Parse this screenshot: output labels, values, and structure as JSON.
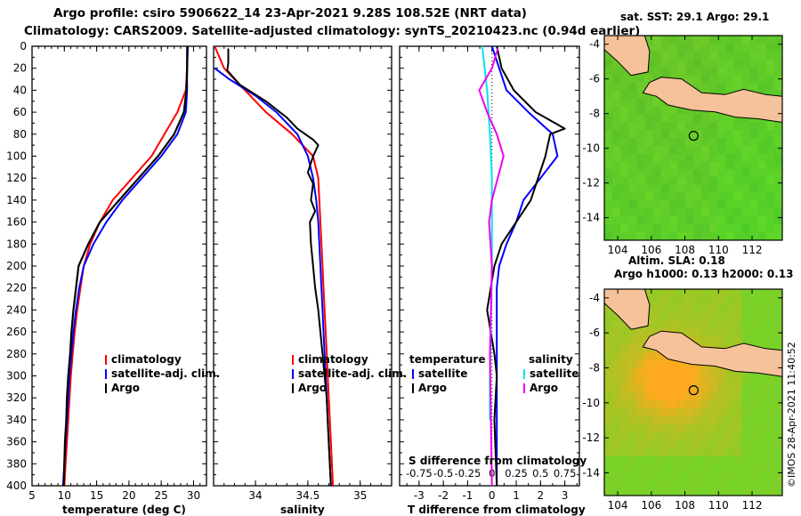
{
  "header": {
    "line1": "Argo profile: csiro 5906622_14 23-Apr-2021 9.28S 108.52E (NRT data)",
    "line2": "Climatology: CARS2009. Satellite-adjusted climatology: synTS_20210423.nc (0.94d earlier)"
  },
  "colors": {
    "climatology": "#ff0000",
    "satellite": "#0000ff",
    "argo": "#000000",
    "salinity_sat": "#00e5ee",
    "salinity_argo": "#ee00ee",
    "land": "#f5c29a"
  },
  "chart_data": [
    {
      "type": "line",
      "xlabel": "temperature (deg C)",
      "ylabel": "",
      "xlim": [
        5,
        32
      ],
      "ylim": [
        400,
        0
      ],
      "x_ticks": [
        "5",
        "10",
        "15",
        "20",
        "25",
        "30"
      ],
      "y_ticks": [
        "0",
        "20",
        "40",
        "60",
        "80",
        "100",
        "120",
        "140",
        "160",
        "180",
        "200",
        "220",
        "240",
        "260",
        "280",
        "300",
        "320",
        "340",
        "360",
        "380",
        "400"
      ],
      "legend": [
        "climatology",
        "satellite-adj. clim.",
        "Argo"
      ],
      "series": [
        {
          "name": "climatology",
          "color": "#ff0000",
          "points": [
            [
              29.0,
              0
            ],
            [
              29.0,
              20
            ],
            [
              28.8,
              40
            ],
            [
              27.5,
              60
            ],
            [
              25.5,
              80
            ],
            [
              23.5,
              100
            ],
            [
              20.5,
              120
            ],
            [
              17.5,
              140
            ],
            [
              15.5,
              160
            ],
            [
              14.0,
              180
            ],
            [
              13.0,
              200
            ],
            [
              12.5,
              220
            ],
            [
              12.0,
              240
            ],
            [
              11.6,
              260
            ],
            [
              11.3,
              280
            ],
            [
              11.0,
              300
            ],
            [
              10.8,
              320
            ],
            [
              10.6,
              340
            ],
            [
              10.4,
              360
            ],
            [
              10.2,
              380
            ],
            [
              10.0,
              400
            ]
          ]
        },
        {
          "name": "satellite-adj. clim.",
          "color": "#0000ff",
          "points": [
            [
              29.0,
              0
            ],
            [
              29.0,
              20
            ],
            [
              29.0,
              40
            ],
            [
              28.8,
              60
            ],
            [
              27.5,
              80
            ],
            [
              25.0,
              100
            ],
            [
              22.0,
              120
            ],
            [
              19.0,
              140
            ],
            [
              16.5,
              160
            ],
            [
              14.5,
              180
            ],
            [
              13.0,
              200
            ],
            [
              12.3,
              220
            ],
            [
              11.8,
              240
            ],
            [
              11.4,
              260
            ],
            [
              11.1,
              280
            ],
            [
              10.8,
              300
            ],
            [
              10.6,
              320
            ],
            [
              10.4,
              340
            ],
            [
              10.2,
              360
            ],
            [
              10.0,
              380
            ],
            [
              9.8,
              400
            ]
          ]
        },
        {
          "name": "Argo",
          "color": "#000000",
          "points": [
            [
              29.1,
              0
            ],
            [
              29.0,
              20
            ],
            [
              28.9,
              40
            ],
            [
              28.5,
              60
            ],
            [
              27.0,
              80
            ],
            [
              24.5,
              100
            ],
            [
              21.5,
              120
            ],
            [
              18.5,
              140
            ],
            [
              15.5,
              160
            ],
            [
              13.7,
              180
            ],
            [
              12.2,
              200
            ],
            [
              11.8,
              220
            ],
            [
              11.4,
              240
            ],
            [
              11.1,
              260
            ],
            [
              10.9,
              280
            ],
            [
              10.6,
              300
            ],
            [
              10.4,
              320
            ],
            [
              10.3,
              340
            ],
            [
              10.1,
              360
            ],
            [
              10.0,
              380
            ],
            [
              9.9,
              400
            ]
          ]
        }
      ]
    },
    {
      "type": "line",
      "xlabel": "salinity",
      "xlim": [
        33.6,
        35.3
      ],
      "ylim": [
        400,
        0
      ],
      "x_ticks": [
        "34",
        "34.5",
        "35"
      ],
      "legend": [
        "climatology",
        "satellite-adj. clim.",
        "Argo"
      ],
      "series": [
        {
          "name": "climatology",
          "color": "#ff0000",
          "points": [
            [
              33.61,
              0
            ],
            [
              33.7,
              20
            ],
            [
              33.9,
              40
            ],
            [
              34.1,
              60
            ],
            [
              34.35,
              80
            ],
            [
              34.55,
              100
            ],
            [
              34.6,
              120
            ],
            [
              34.61,
              140
            ],
            [
              34.62,
              160
            ],
            [
              34.63,
              180
            ],
            [
              34.64,
              200
            ],
            [
              34.65,
              220
            ],
            [
              34.66,
              240
            ],
            [
              34.67,
              260
            ],
            [
              34.68,
              280
            ],
            [
              34.69,
              300
            ],
            [
              34.7,
              320
            ],
            [
              34.71,
              340
            ],
            [
              34.72,
              360
            ],
            [
              34.73,
              380
            ],
            [
              34.74,
              400
            ]
          ]
        },
        {
          "name": "satellite-adj. clim.",
          "color": "#0000ff",
          "points": [
            [
              33.61,
              20
            ],
            [
              33.75,
              30
            ],
            [
              34.0,
              45
            ],
            [
              34.2,
              60
            ],
            [
              34.4,
              80
            ],
            [
              34.5,
              100
            ],
            [
              34.55,
              120
            ],
            [
              34.58,
              140
            ],
            [
              34.6,
              160
            ],
            [
              34.61,
              180
            ],
            [
              34.62,
              200
            ],
            [
              34.63,
              220
            ],
            [
              34.64,
              240
            ],
            [
              34.65,
              260
            ],
            [
              34.66,
              280
            ],
            [
              34.67,
              300
            ],
            [
              34.68,
              320
            ],
            [
              34.69,
              340
            ],
            [
              34.7,
              360
            ],
            [
              34.71,
              380
            ],
            [
              34.72,
              400
            ]
          ]
        },
        {
          "name": "Argo",
          "color": "#000000",
          "points": [
            [
              33.74,
              2
            ],
            [
              33.74,
              15
            ],
            [
              33.73,
              22
            ],
            [
              33.85,
              35
            ],
            [
              34.1,
              50
            ],
            [
              34.3,
              65
            ],
            [
              34.4,
              75
            ],
            [
              34.55,
              85
            ],
            [
              34.6,
              90
            ],
            [
              34.55,
              100
            ],
            [
              34.5,
              115
            ],
            [
              34.55,
              125
            ],
            [
              34.53,
              140
            ],
            [
              34.57,
              150
            ],
            [
              34.52,
              160
            ],
            [
              34.53,
              180
            ],
            [
              34.55,
              200
            ],
            [
              34.57,
              220
            ],
            [
              34.6,
              240
            ],
            [
              34.62,
              260
            ],
            [
              34.64,
              280
            ],
            [
              34.66,
              300
            ],
            [
              34.68,
              320
            ],
            [
              34.69,
              340
            ],
            [
              34.7,
              360
            ],
            [
              34.71,
              380
            ],
            [
              34.72,
              400
            ]
          ]
        }
      ]
    },
    {
      "type": "line",
      "xlabel": "T difference from climatology",
      "xlim": [
        -3.8,
        3.6
      ],
      "ylim": [
        400,
        0
      ],
      "x_ticks": [
        "-3",
        "-2",
        "-1",
        "0",
        "1",
        "2",
        "3"
      ],
      "s_axis_title": "S difference from climatology",
      "s_ticks": [
        "-0.75",
        "-0.5",
        "-0.25",
        "0",
        "0.25",
        "0.5",
        "0.75"
      ],
      "s_range": [
        -0.75,
        0.75
      ],
      "legend_temperature": [
        "temperature",
        "satellite",
        "Argo"
      ],
      "legend_salinity": [
        "salinity",
        "satellite",
        "Argo"
      ],
      "series": [
        {
          "name": "temperature satellite",
          "color": "#0000ff",
          "points": [
            [
              0,
              0
            ],
            [
              0.3,
              20
            ],
            [
              0.6,
              40
            ],
            [
              1.5,
              60
            ],
            [
              2.5,
              80
            ],
            [
              2.7,
              100
            ],
            [
              2.0,
              120
            ],
            [
              1.3,
              140
            ],
            [
              1.0,
              160
            ],
            [
              0.6,
              180
            ],
            [
              0.3,
              200
            ],
            [
              0.2,
              220
            ],
            [
              0.2,
              260
            ],
            [
              0.2,
              300
            ],
            [
              0.2,
              360
            ],
            [
              0.2,
              400
            ]
          ]
        },
        {
          "name": "temperature Argo",
          "color": "#000000",
          "points": [
            [
              0.2,
              0
            ],
            [
              0.4,
              20
            ],
            [
              0.9,
              40
            ],
            [
              1.8,
              60
            ],
            [
              2.6,
              70
            ],
            [
              3.0,
              75
            ],
            [
              2.4,
              80
            ],
            [
              2.2,
              100
            ],
            [
              1.6,
              140
            ],
            [
              1.0,
              160
            ],
            [
              0.4,
              180
            ],
            [
              0.1,
              200
            ],
            [
              -0.2,
              240
            ],
            [
              0.1,
              280
            ],
            [
              0.2,
              300
            ],
            [
              0.1,
              340
            ],
            [
              0.2,
              400
            ]
          ]
        },
        {
          "name": "salinity satellite",
          "color": "#00e5ee",
          "points": [
            [
              -0.1,
              0
            ],
            [
              -0.05,
              40
            ],
            [
              -0.02,
              80
            ],
            [
              0.0,
              120
            ],
            [
              0.0,
              200
            ],
            [
              -0.01,
              250
            ],
            [
              -0.02,
              300
            ],
            [
              -0.02,
              340
            ]
          ]
        },
        {
          "name": "salinity Argo",
          "color": "#ee00ee",
          "points": [
            [
              0.06,
              2
            ],
            [
              0.0,
              20
            ],
            [
              -0.13,
              40
            ],
            [
              -0.05,
              60
            ],
            [
              0.05,
              80
            ],
            [
              0.12,
              100
            ],
            [
              0.0,
              140
            ],
            [
              -0.03,
              160
            ],
            [
              0.0,
              200
            ],
            [
              -0.02,
              280
            ],
            [
              0.0,
              400
            ]
          ]
        }
      ]
    },
    {
      "type": "heatmap",
      "title": "sat. SST: 29.1  Argo: 29.1",
      "x_ticks": [
        "104",
        "106",
        "108",
        "110",
        "112"
      ],
      "y_ticks": [
        "-4",
        "-6",
        "-8",
        "-10",
        "-12",
        "-14"
      ],
      "xlim": [
        103.2,
        113.8
      ],
      "ylim": [
        -15.3,
        -3.5
      ],
      "marker": {
        "lon": 108.52,
        "lat": -9.28
      }
    },
    {
      "type": "heatmap",
      "title": "Altim. SLA: 0.18",
      "subtitle": "Argo h1000: 0.13 h2000: 0.13",
      "x_ticks": [
        "104",
        "106",
        "108",
        "110",
        "112"
      ],
      "y_ticks": [
        "-4",
        "-6",
        "-8",
        "-10",
        "-12",
        "-14"
      ],
      "xlim": [
        103.2,
        113.8
      ],
      "ylim": [
        -15.3,
        -3.5
      ],
      "marker": {
        "lon": 108.52,
        "lat": -9.28
      }
    }
  ],
  "footer": {
    "credit": "©IMOS 28-Apr-2021 11:40:52"
  }
}
